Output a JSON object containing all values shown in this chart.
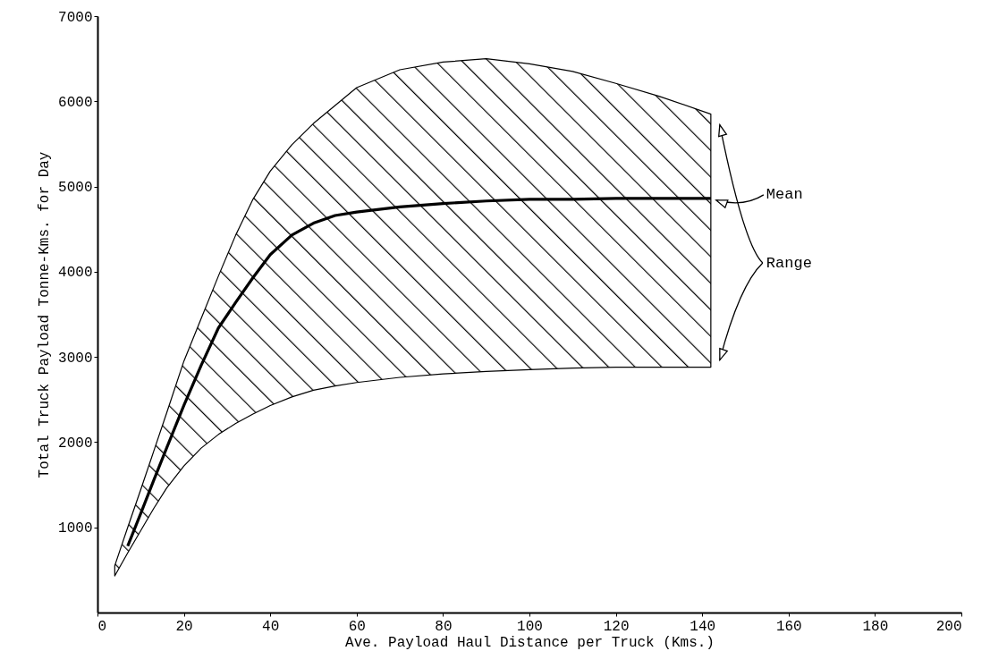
{
  "chart_data": {
    "type": "line",
    "xlabel": "Ave. Payload Haul Distance per Truck (Kms.)",
    "ylabel": "Total Truck Payload Tonne-Kms. for Day",
    "x": [
      4,
      7,
      10,
      13,
      16,
      20,
      24,
      28,
      32,
      36,
      40,
      45,
      50,
      55,
      60,
      70,
      80,
      90,
      100,
      110,
      120,
      130,
      142
    ],
    "series": [
      {
        "color": "#000000",
        "values": [
          null,
          780,
          1160,
          1550,
          1930,
          2430,
          2900,
          3340,
          3640,
          3930,
          4200,
          4430,
          4570,
          4660,
          4700,
          4760,
          4800,
          4830,
          4850,
          4850,
          4860,
          4860,
          4860
        ],
        "lower": [
          430,
          700,
          960,
          1220,
          1460,
          1720,
          1930,
          2090,
          2220,
          2330,
          2430,
          2530,
          2610,
          2660,
          2700,
          2760,
          2800,
          2830,
          2850,
          2870,
          2880,
          2880,
          2880
        ],
        "upper": [
          550,
          1000,
          1440,
          1890,
          2340,
          2950,
          3450,
          3950,
          4430,
          4850,
          5180,
          5490,
          5740,
          5950,
          6160,
          6370,
          6460,
          6500,
          6440,
          6350,
          6210,
          6060,
          5850
        ]
      }
    ],
    "xlim": [
      0,
      200
    ],
    "ylim": [
      0,
      7000
    ],
    "xticks": [
      0,
      20,
      40,
      60,
      80,
      100,
      120,
      140,
      160,
      180,
      200
    ],
    "yticks": [
      1000,
      2000,
      3000,
      4000,
      5000,
      6000,
      7000
    ],
    "annotations": [
      {
        "text": "Mean",
        "x": 142,
        "y": 4860
      },
      "Range"
    ]
  }
}
